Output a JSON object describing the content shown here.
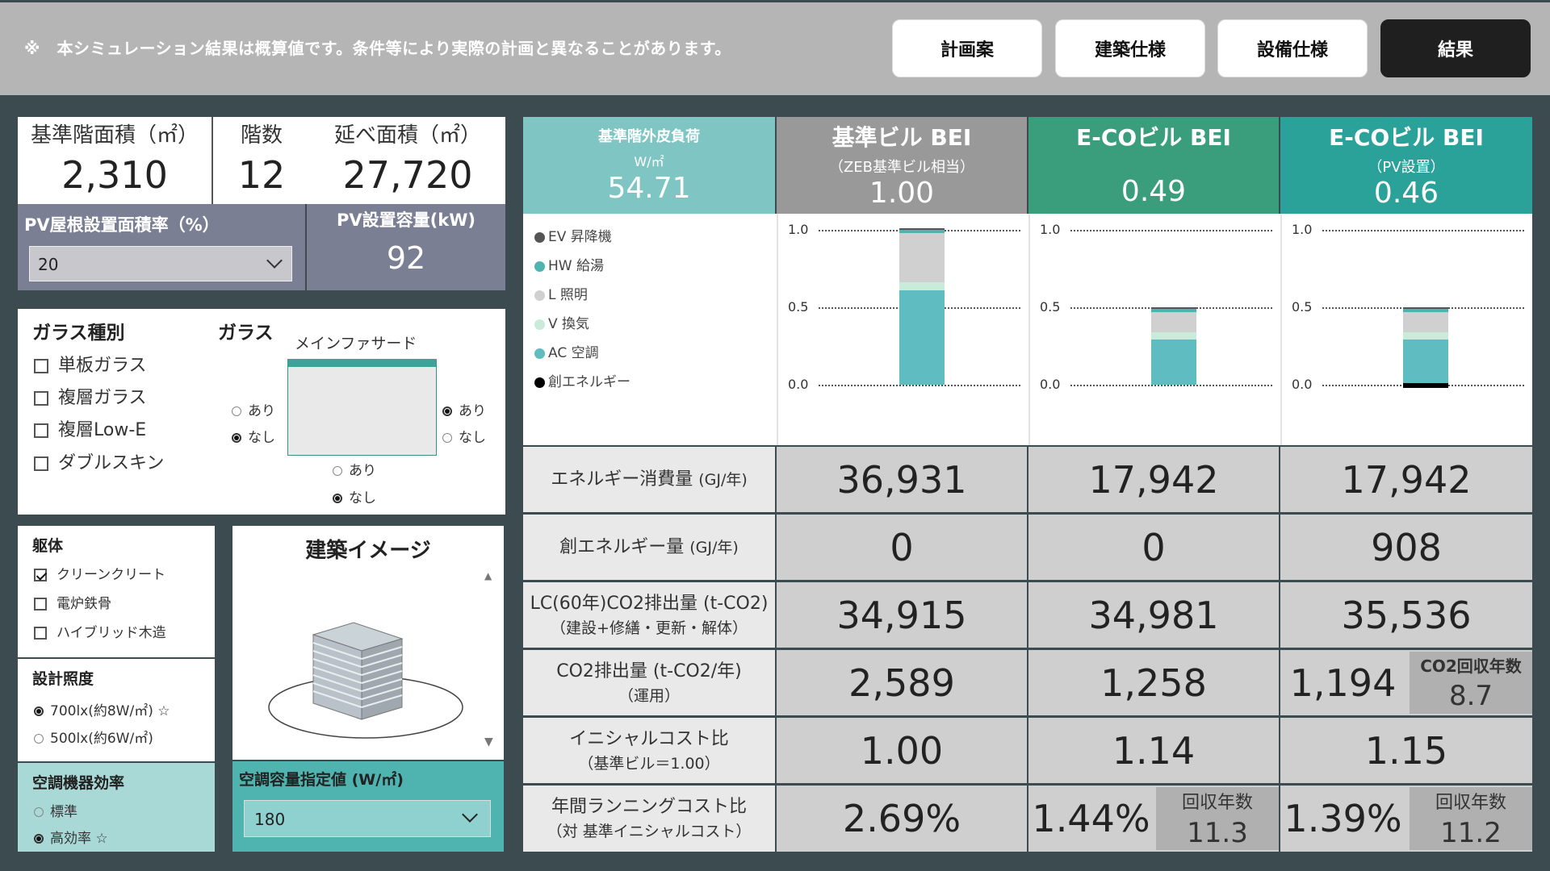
{
  "header": {
    "notice": "※　本シミュレーション結果は概算値です。条件等により実際の計画と異なることがあります。",
    "nav": [
      {
        "label": "計画案",
        "active": false
      },
      {
        "label": "建築仕様",
        "active": false
      },
      {
        "label": "設備仕様",
        "active": false
      },
      {
        "label": "結果",
        "active": true
      }
    ]
  },
  "area": {
    "std_floor_label": "基準階面積（㎡）",
    "std_floor_value": "2,310",
    "floors_label": "階数",
    "floors_value": "12",
    "total_label": "延べ面積（㎡）",
    "total_value": "27,720"
  },
  "pv": {
    "ratio_label": "PV屋根設置面積率（%）",
    "ratio_value": "20",
    "capacity_label": "PV設置容量(kW)",
    "capacity_value": "92"
  },
  "glass": {
    "type_title": "ガラス種別",
    "types": [
      {
        "label": "単板ガラス",
        "checked": false
      },
      {
        "label": "複層ガラス",
        "checked": false
      },
      {
        "label": "複層Low-E",
        "checked": false
      },
      {
        "label": "ダブルスキン",
        "checked": false
      }
    ],
    "glass_title": "ガラス",
    "facade_label": "メインファサード",
    "left": {
      "yes": "あり",
      "no": "なし",
      "selected": "no"
    },
    "right": {
      "yes": "あり",
      "no": "なし",
      "selected": "yes"
    },
    "bottom": {
      "yes": "あり",
      "no": "なし",
      "selected": "no"
    }
  },
  "structure": {
    "title": "躯体",
    "options": [
      {
        "label": "クリーンクリート",
        "checked": true
      },
      {
        "label": "電炉鉄骨",
        "checked": false
      },
      {
        "label": "ハイブリッド木造",
        "checked": false
      }
    ]
  },
  "lighting": {
    "title": "設計照度",
    "options": [
      {
        "label": "700lx(約8W/㎡) ☆",
        "selected": true
      },
      {
        "label": "500lx(約6W/㎡)",
        "selected": false
      }
    ]
  },
  "hvac": {
    "title": "空調機器効率",
    "options": [
      {
        "label": "標準",
        "selected": false
      },
      {
        "label": "高効率 ☆",
        "selected": true
      }
    ]
  },
  "image": {
    "title": "建築イメージ"
  },
  "capacity": {
    "title": "空調容量指定値 (W/㎡)",
    "value": "180"
  },
  "results": {
    "envelope": {
      "title": "基準階外皮負荷",
      "unit": "W/㎡",
      "value": "54.71"
    },
    "columns": [
      {
        "title": "基準ビル BEI",
        "sub": "（ZEB基準ビル相当）",
        "value": "1.00",
        "color": "#999999"
      },
      {
        "title": "E-COビル BEI",
        "sub": "",
        "value": "0.49",
        "color": "#3a9e7c"
      },
      {
        "title": "E-COビル BEI",
        "sub": "（PV設置）",
        "value": "0.46",
        "color": "#2aa29a"
      }
    ],
    "legend": [
      {
        "label": "EV 昇降機",
        "color": "#555555"
      },
      {
        "label": "HW 給湯",
        "color": "#4fb3b0"
      },
      {
        "label": "L 照明",
        "color": "#d0d0d0"
      },
      {
        "label": "V 換気",
        "color": "#c8ecd9"
      },
      {
        "label": "AC 空調",
        "color": "#5fbcc0"
      },
      {
        "label": "創エネルギー",
        "color": "#000000"
      }
    ],
    "rows": [
      {
        "label": "エネルギー消費量",
        "unit": "(GJ/年)",
        "sub": "",
        "values": [
          "36,931",
          "17,942",
          "17,942"
        ]
      },
      {
        "label": "創エネルギー量",
        "unit": "(GJ/年)",
        "sub": "",
        "values": [
          "0",
          "0",
          "908"
        ]
      },
      {
        "label": "LC(60年)CO2排出量 (t-CO2)",
        "unit": "",
        "sub": "（建設+修繕・更新・解体）",
        "values": [
          "34,915",
          "34,981",
          "35,536"
        ]
      },
      {
        "label": "CO2排出量 (t-CO2/年)",
        "unit": "",
        "sub": "（運用）",
        "values": [
          "2,589",
          "1,258",
          "1,194"
        ]
      },
      {
        "label": "イニシャルコスト比",
        "unit": "",
        "sub": "（基準ビル＝1.00）",
        "values": [
          "1.00",
          "1.14",
          "1.15"
        ]
      },
      {
        "label": "年間ランニングコスト比",
        "unit": "",
        "sub": "（対 基準イニシャルコスト）",
        "values": [
          "2.69%",
          "1.44%",
          "1.39%"
        ]
      }
    ],
    "co2_payback": {
      "title": "CO2回収年数",
      "value": "8.7"
    },
    "payback_ecobill": {
      "title": "回収年数",
      "value": "11.3"
    },
    "payback_pv": {
      "title": "回収年数",
      "value": "11.2"
    }
  },
  "chart_data": {
    "type": "bar",
    "stacked": true,
    "categories": [
      "基準ビル BEI",
      "E-COビル BEI",
      "E-COビル BEI（PV設置）"
    ],
    "yticks": [
      "1.0",
      "0.5",
      "0.0"
    ],
    "ylim": [
      0,
      1.0
    ],
    "series": [
      {
        "name": "AC 空調",
        "values": [
          0.61,
          0.29,
          0.29
        ]
      },
      {
        "name": "V 換気",
        "values": [
          0.05,
          0.05,
          0.05
        ]
      },
      {
        "name": "L 照明",
        "values": [
          0.32,
          0.13,
          0.13
        ]
      },
      {
        "name": "HW 給湯",
        "values": [
          0.02,
          0.02,
          0.02
        ]
      },
      {
        "name": "EV 昇降機",
        "values": [
          0.01,
          0.01,
          0.01
        ]
      },
      {
        "name": "創エネルギー",
        "values": [
          0.0,
          0.0,
          0.03
        ]
      }
    ]
  }
}
